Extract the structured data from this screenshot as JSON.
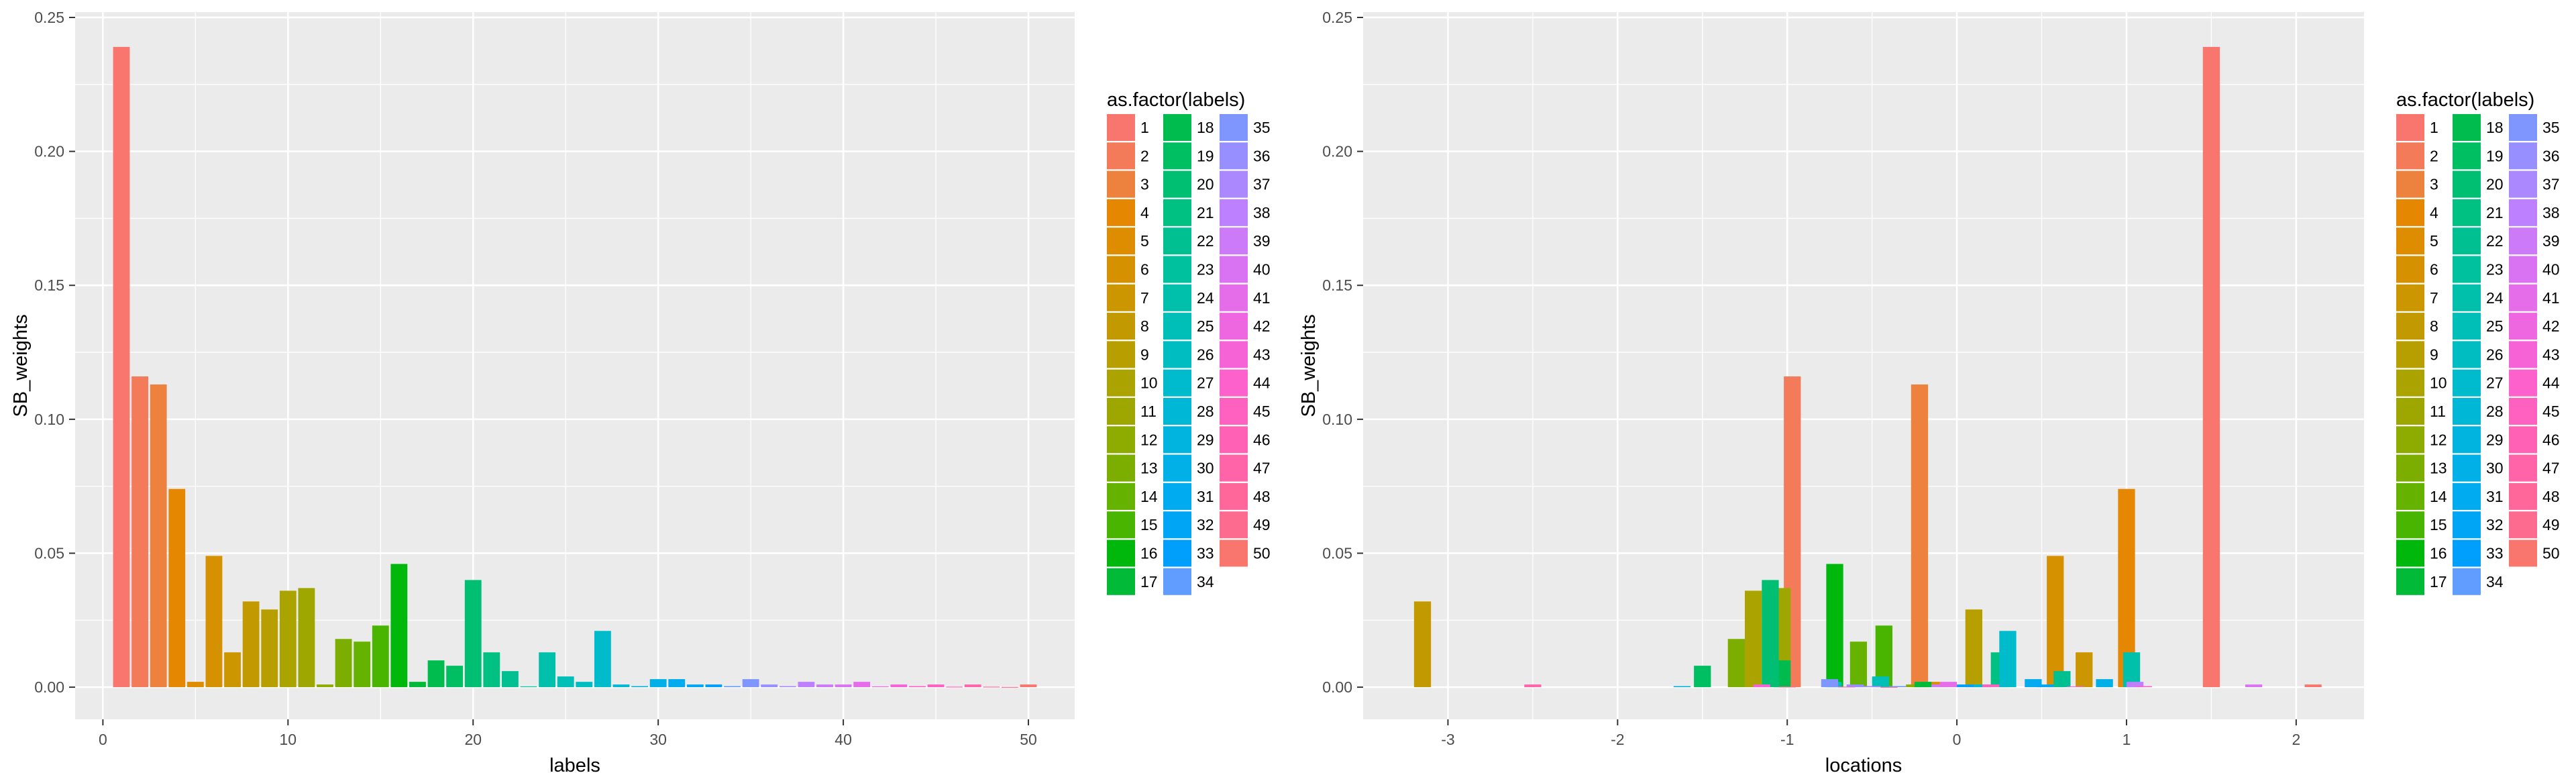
{
  "chart_data": [
    {
      "type": "bar",
      "xlabel": "labels",
      "ylabel": "SB_weights",
      "xlim": [
        -1.5,
        52.5
      ],
      "ylim": [
        -0.012,
        0.252
      ],
      "xticks": [
        0,
        10,
        20,
        30,
        40,
        50
      ],
      "yticks": [
        0.0,
        0.05,
        0.1,
        0.15,
        0.2,
        0.25
      ],
      "ytick_labels": [
        "0.00",
        "0.05",
        "0.10",
        "0.15",
        "0.20",
        "0.25"
      ],
      "grid": true,
      "legend_position": "right",
      "bar_width": 0.9,
      "x": [
        1,
        2,
        3,
        4,
        5,
        6,
        7,
        8,
        9,
        10,
        11,
        12,
        13,
        14,
        15,
        16,
        17,
        18,
        19,
        20,
        21,
        22,
        23,
        24,
        25,
        26,
        27,
        28,
        29,
        30,
        31,
        32,
        33,
        34,
        35,
        36,
        37,
        38,
        39,
        40,
        41,
        42,
        43,
        44,
        45,
        46,
        47,
        48,
        49,
        50
      ],
      "values": [
        0.239,
        0.116,
        0.113,
        0.074,
        0.002,
        0.049,
        0.013,
        0.032,
        0.029,
        0.036,
        0.037,
        0.001,
        0.018,
        0.017,
        0.023,
        0.046,
        0.002,
        0.01,
        0.008,
        0.04,
        0.013,
        0.006,
        0.0003,
        0.013,
        0.004,
        0.002,
        0.021,
        0.001,
        0.0004,
        0.003,
        0.003,
        0.001,
        0.001,
        0.0004,
        0.003,
        0.001,
        0.0004,
        0.002,
        0.001,
        0.001,
        0.002,
        0.0003,
        0.001,
        0.0004,
        0.001,
        0.0002,
        0.001,
        0.0002,
        0.0001,
        0.001
      ]
    },
    {
      "type": "bar",
      "xlabel": "locations",
      "ylabel": "SB_weights",
      "xlim": [
        -3.5,
        2.4
      ],
      "ylim": [
        -0.012,
        0.252
      ],
      "xticks": [
        -3,
        -2,
        -1,
        0,
        1,
        2
      ],
      "yticks": [
        0.0,
        0.05,
        0.1,
        0.15,
        0.2,
        0.25
      ],
      "ytick_labels": [
        "0.00",
        "0.05",
        "0.10",
        "0.15",
        "0.20",
        "0.25"
      ],
      "grid": true,
      "legend_position": "right",
      "bar_width": 0.1,
      "x": [
        1.5,
        -0.97,
        -0.22,
        1.0,
        -0.15,
        0.58,
        0.75,
        -3.15,
        0.1,
        -1.2,
        -1.03,
        -0.25,
        -1.3,
        -0.58,
        -0.43,
        -0.72,
        -0.2,
        -1.03,
        -1.5,
        -1.1,
        0.25,
        0.62,
        0.15,
        1.03,
        -0.45,
        -0.73,
        0.3,
        0.15,
        -1.62,
        0.87,
        0.45,
        0.52,
        0.05,
        -0.35,
        -0.75,
        -0.6,
        -0.5,
        1.05,
        -0.1,
        1.75,
        -0.05,
        0.7,
        -1.15,
        1.1,
        0.2,
        -0.65,
        -2.5,
        -1.0,
        -0.4,
        2.1
      ],
      "values": [
        0.239,
        0.116,
        0.113,
        0.074,
        0.002,
        0.049,
        0.013,
        0.032,
        0.029,
        0.036,
        0.037,
        0.001,
        0.018,
        0.017,
        0.023,
        0.046,
        0.002,
        0.01,
        0.008,
        0.04,
        0.013,
        0.006,
        0.0003,
        0.013,
        0.004,
        0.002,
        0.021,
        0.001,
        0.0004,
        0.003,
        0.003,
        0.001,
        0.001,
        0.0004,
        0.003,
        0.001,
        0.0004,
        0.002,
        0.001,
        0.001,
        0.002,
        0.0003,
        0.001,
        0.0004,
        0.001,
        0.0002,
        0.001,
        0.0002,
        0.0001,
        0.001
      ]
    }
  ],
  "legend": {
    "title": "as.factor(labels)",
    "labels": [
      "1",
      "2",
      "3",
      "4",
      "5",
      "6",
      "7",
      "8",
      "9",
      "10",
      "11",
      "12",
      "13",
      "14",
      "15",
      "16",
      "17",
      "18",
      "19",
      "20",
      "21",
      "22",
      "23",
      "24",
      "25",
      "26",
      "27",
      "28",
      "29",
      "30",
      "31",
      "32",
      "33",
      "34",
      "35",
      "36",
      "37",
      "38",
      "39",
      "40",
      "41",
      "42",
      "43",
      "44",
      "45",
      "46",
      "47",
      "48",
      "49",
      "50"
    ],
    "colors": [
      "#F8766D",
      "#F37B59",
      "#ED813E",
      "#E58700",
      "#DE8C00",
      "#D69100",
      "#CC9600",
      "#C29A00",
      "#B79F00",
      "#ABA300",
      "#9DA700",
      "#8EAB00",
      "#7CAE00",
      "#66B200",
      "#49B500",
      "#00B70C",
      "#00BA38",
      "#00BC4F",
      "#00BE62",
      "#00BF73",
      "#00C082",
      "#00C091",
      "#00C19E",
      "#00C0AB",
      "#00BFB7",
      "#00BDC2",
      "#00BBCC",
      "#00B8D6",
      "#00B4DF",
      "#00B0E7",
      "#00ABEF",
      "#00A5F5",
      "#009FFB",
      "#619CFF",
      "#7F96FF",
      "#978FFF",
      "#AC88FF",
      "#BD81FF",
      "#CC7AF8",
      "#DA73F2",
      "#E56DEA",
      "#EE67E1",
      "#F663D7",
      "#FC61CC",
      "#FF61C1",
      "#FF62B5",
      "#FF64A8",
      "#FF679B",
      "#FD6B8E",
      "#F8766D"
    ]
  }
}
